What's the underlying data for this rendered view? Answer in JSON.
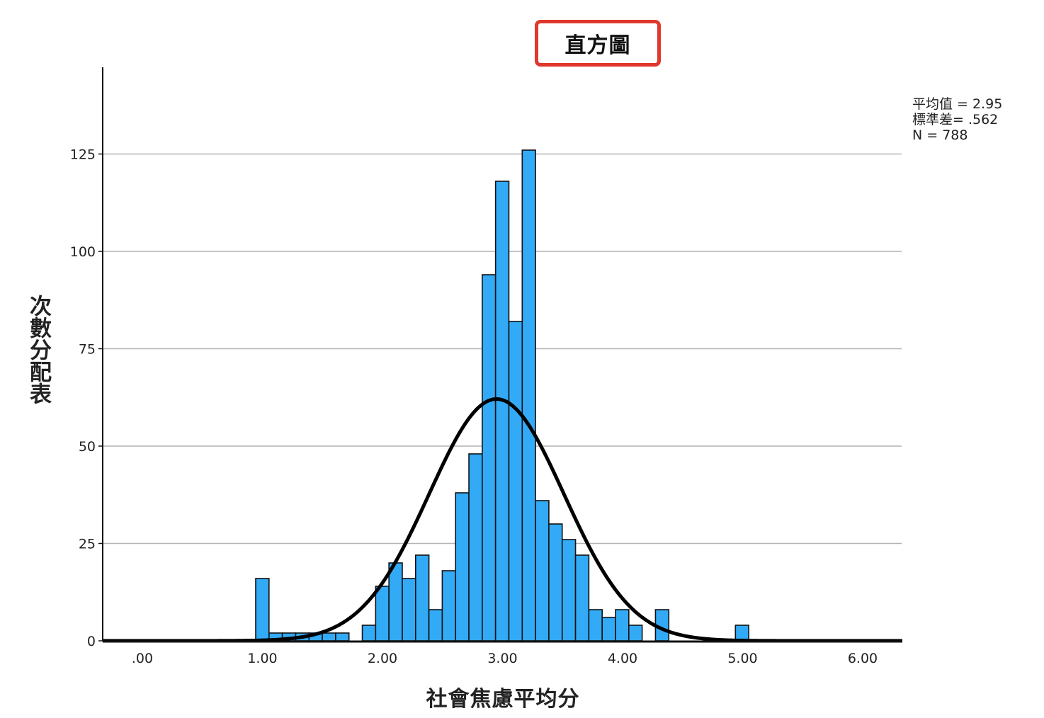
{
  "chart_data": {
    "type": "bar",
    "title": "直方圖",
    "xlabel": "社會焦慮平均分",
    "ylabel": "次數分配表",
    "stats": {
      "mean_text": "平均值 = 2.95",
      "sd_text": "標準差= .562",
      "n_text": "N = 788",
      "mean": 2.95,
      "sd": 0.562,
      "n": 788
    },
    "xlim": [
      -0.33,
      6.33
    ],
    "ylim": [
      0,
      150
    ],
    "xticks": [
      ".00",
      "1.00",
      "2.00",
      "3.00",
      "4.00",
      "5.00",
      "6.00"
    ],
    "xtick_values": [
      0,
      1,
      2,
      3,
      4,
      5,
      6
    ],
    "yticks": [
      "0",
      "25",
      "50",
      "75",
      "100",
      "125"
    ],
    "ytick_values": [
      0,
      25,
      50,
      75,
      100,
      125
    ],
    "bin_width": 0.111,
    "bins": [
      {
        "x0": 0.944,
        "value": 16
      },
      {
        "x0": 1.055,
        "value": 2
      },
      {
        "x0": 1.166,
        "value": 2
      },
      {
        "x0": 1.277,
        "value": 2
      },
      {
        "x0": 1.388,
        "value": 2
      },
      {
        "x0": 1.499,
        "value": 2
      },
      {
        "x0": 1.61,
        "value": 2
      },
      {
        "x0": 1.832,
        "value": 4
      },
      {
        "x0": 1.943,
        "value": 14
      },
      {
        "x0": 2.054,
        "value": 20
      },
      {
        "x0": 2.165,
        "value": 16
      },
      {
        "x0": 2.276,
        "value": 22
      },
      {
        "x0": 2.387,
        "value": 8
      },
      {
        "x0": 2.498,
        "value": 18
      },
      {
        "x0": 2.609,
        "value": 38
      },
      {
        "x0": 2.72,
        "value": 48
      },
      {
        "x0": 2.831,
        "value": 94
      },
      {
        "x0": 2.942,
        "value": 118
      },
      {
        "x0": 3.053,
        "value": 82
      },
      {
        "x0": 3.164,
        "value": 126
      },
      {
        "x0": 3.275,
        "value": 36
      },
      {
        "x0": 3.386,
        "value": 30
      },
      {
        "x0": 3.497,
        "value": 26
      },
      {
        "x0": 3.608,
        "value": 22
      },
      {
        "x0": 3.719,
        "value": 8
      },
      {
        "x0": 3.83,
        "value": 6
      },
      {
        "x0": 3.941,
        "value": 8
      },
      {
        "x0": 4.052,
        "value": 4
      },
      {
        "x0": 4.274,
        "value": 8
      },
      {
        "x0": 4.94,
        "value": 4
      }
    ],
    "normal_curve": true,
    "grid": true,
    "colors": {
      "bar_fill": "#33aaf5",
      "bar_stroke": "#111111",
      "curve": "#000000",
      "grid": "#b4b4b4",
      "title_box_border": "#e0382c"
    }
  }
}
